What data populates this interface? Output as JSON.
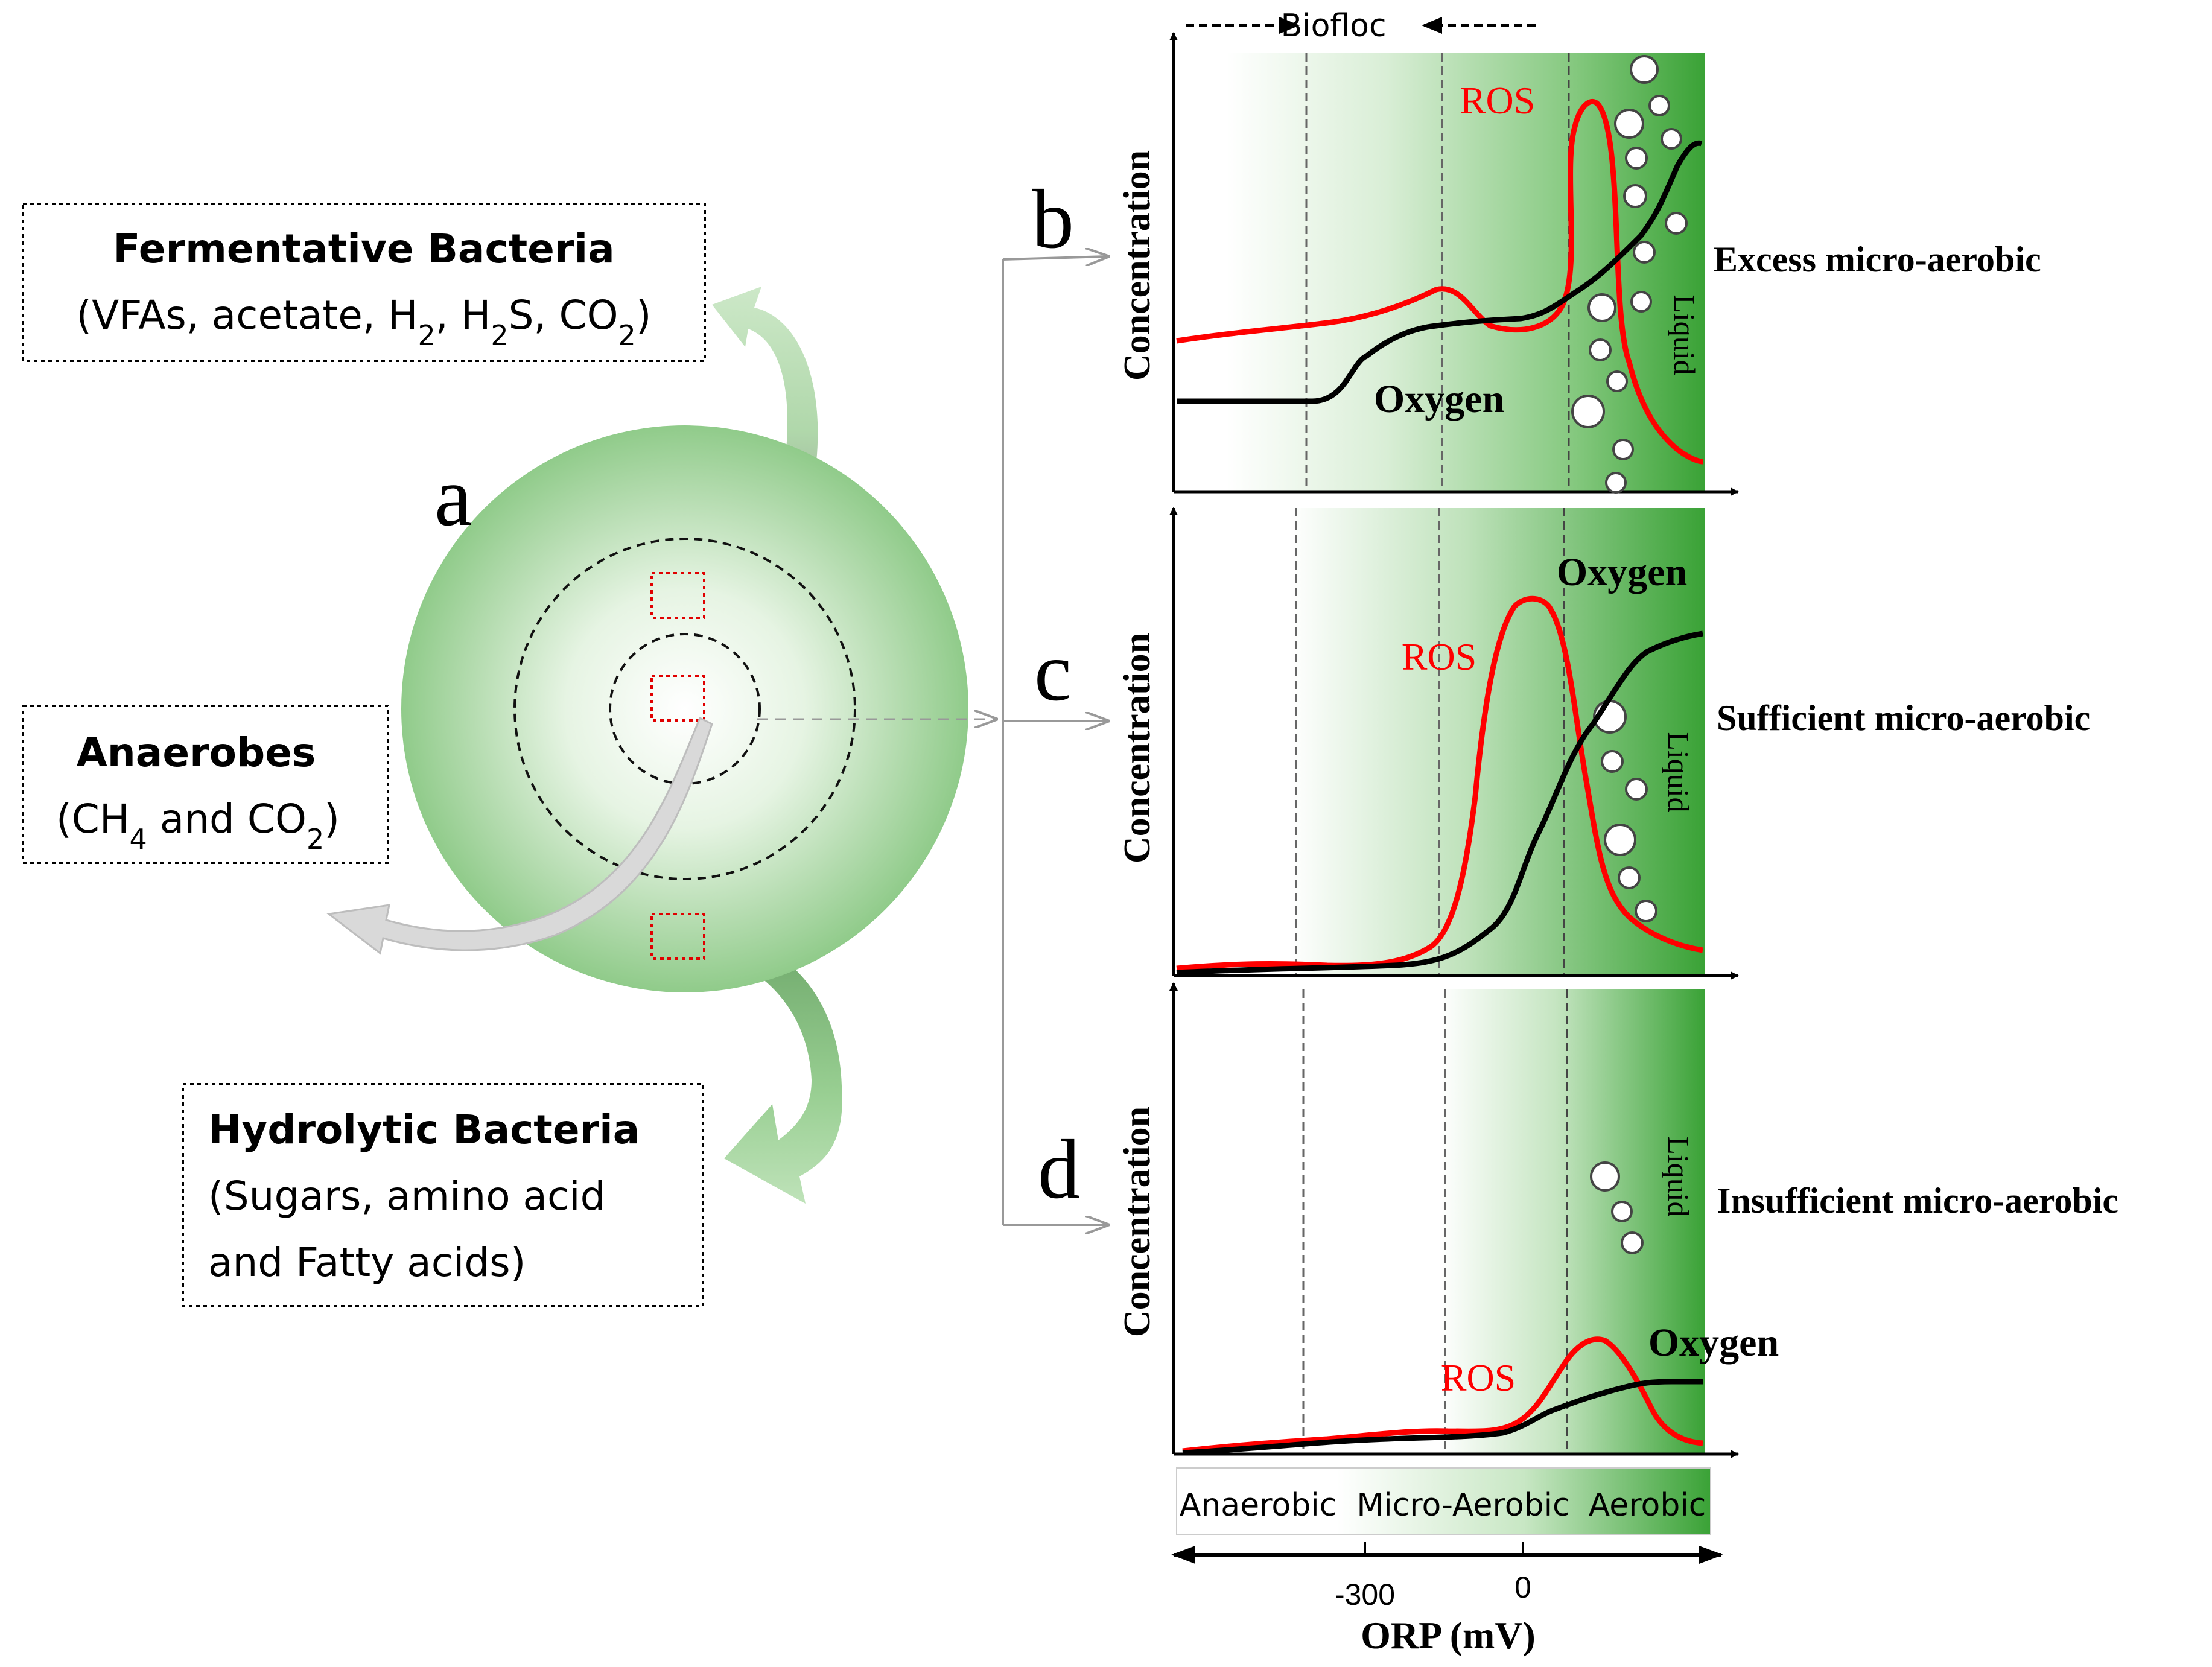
{
  "colors": {
    "green_dark": "#3fa83c",
    "green_light": "#d4ecd0",
    "ros_red": "#ff0000",
    "oxygen_black": "#000000",
    "dashed_gray": "#666666"
  },
  "panel_a": {
    "label": "a",
    "fermentative": {
      "title": "Fermentative Bacteria",
      "prefix": "(VFAs, acetate, H",
      "sub1": "2",
      "mid1": ", H",
      "sub2": "2",
      "mid2": "S, CO",
      "sub3": "2",
      "suffix": ")"
    },
    "anaerobes": {
      "title": "Anaerobes",
      "prefix": "(CH",
      "sub1": "4",
      "mid1": " and CO",
      "sub2": "2",
      "suffix": ")"
    },
    "hydrolytic": {
      "title": "Hydrolytic Bacteria",
      "line1": "(Sugars, amino acid",
      "line2": "and Fatty acids)"
    }
  },
  "biofloc_label": "Biofloc",
  "panels": {
    "b": {
      "label": "b",
      "ylabel": "Concentration",
      "ros": "ROS",
      "oxygen": "Oxygen",
      "liquid": "Liquid",
      "condition": "Excess micro-aerobic"
    },
    "c": {
      "label": "c",
      "ylabel": "Concentration",
      "ros": "ROS",
      "oxygen": "Oxygen",
      "liquid": "Liquid",
      "condition": "Sufficient micro-aerobic"
    },
    "d": {
      "label": "d",
      "ylabel": "Concentration",
      "ros": "ROS",
      "oxygen": "Oxygen",
      "liquid": "Liquid",
      "condition": "Insufficient micro-aerobic"
    }
  },
  "zones": {
    "anaerobic": "Anaerobic",
    "micro_aerobic": "Micro-Aerobic",
    "aerobic": "Aerobic"
  },
  "axis": {
    "tick_minus300": "-300",
    "tick_0": "0",
    "xlabel": "ORP (mV)"
  }
}
